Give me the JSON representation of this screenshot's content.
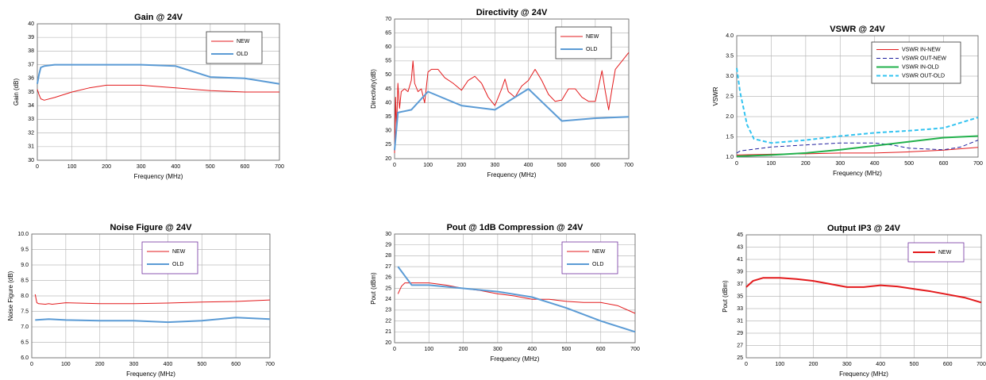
{
  "chart_data": [
    {
      "type": "line",
      "title": "Gain @ 24V",
      "xlabel": "Frequency (MHz)",
      "ylabel": "Gain (dB)",
      "xlim": [
        0,
        700
      ],
      "xticks": [
        0,
        100,
        200,
        300,
        400,
        500,
        600,
        700
      ],
      "ylim": [
        30,
        40
      ],
      "yticks": [
        30,
        31,
        32,
        33,
        34,
        35,
        36,
        37,
        38,
        39,
        40
      ],
      "grid": true,
      "legend": "upper right",
      "series": [
        {
          "name": "NEW",
          "color": "#e31a1c",
          "style": "solid",
          "width": 1,
          "x": [
            0,
            5,
            10,
            20,
            50,
            100,
            150,
            200,
            250,
            300,
            350,
            400,
            500,
            600,
            700
          ],
          "values": [
            35.2,
            34.8,
            34.5,
            34.4,
            34.6,
            35.0,
            35.3,
            35.5,
            35.5,
            35.5,
            35.4,
            35.3,
            35.1,
            35.0,
            35.0
          ]
        },
        {
          "name": "OLD",
          "color": "#5b9bd5",
          "style": "solid",
          "width": 2,
          "x": [
            0,
            5,
            10,
            20,
            50,
            100,
            200,
            300,
            400,
            500,
            600,
            700
          ],
          "values": [
            35.6,
            36.3,
            36.8,
            36.9,
            37.0,
            37.0,
            37.0,
            37.0,
            36.9,
            36.1,
            36.0,
            35.6
          ]
        }
      ]
    },
    {
      "type": "line",
      "title": "Directivity @ 24V",
      "xlabel": "Frequency (MHz)",
      "ylabel": "Directivity(dB)",
      "xlim": [
        0,
        700
      ],
      "xticks": [
        0,
        100,
        200,
        300,
        400,
        500,
        600,
        700
      ],
      "ylim": [
        20,
        70
      ],
      "yticks": [
        20,
        25,
        30,
        35,
        40,
        45,
        50,
        55,
        60,
        65,
        70
      ],
      "grid": true,
      "legend": "upper right",
      "series": [
        {
          "name": "NEW",
          "color": "#e31a1c",
          "style": "solid",
          "width": 1,
          "x": [
            0,
            3,
            6,
            10,
            15,
            20,
            30,
            40,
            50,
            55,
            60,
            70,
            80,
            90,
            100,
            110,
            130,
            150,
            175,
            200,
            220,
            240,
            260,
            280,
            300,
            320,
            330,
            340,
            360,
            380,
            400,
            420,
            440,
            460,
            480,
            500,
            520,
            540,
            560,
            580,
            600,
            620,
            630,
            640,
            650,
            660,
            680,
            700
          ],
          "values": [
            22,
            42,
            30,
            47,
            38,
            44,
            45,
            44,
            48,
            55,
            47,
            44,
            45,
            40,
            51,
            52,
            52,
            49,
            47,
            44.5,
            48,
            49.5,
            47,
            42,
            39,
            45,
            48.5,
            44,
            42,
            46,
            48,
            52,
            48,
            43,
            40.5,
            41,
            45,
            45,
            42,
            40.5,
            40.5,
            51.5,
            44,
            37.5,
            45,
            52,
            55,
            58
          ]
        },
        {
          "name": "OLD",
          "color": "#5b9bd5",
          "style": "solid",
          "width": 2,
          "x": [
            0,
            10,
            50,
            100,
            200,
            300,
            400,
            500,
            600,
            700
          ],
          "values": [
            23,
            36.5,
            37.5,
            44,
            39,
            37.5,
            45,
            33.5,
            34.5,
            35
          ]
        }
      ]
    },
    {
      "type": "line",
      "title": "VSWR @ 24V",
      "xlabel": "Frequency (MHz)",
      "ylabel": "VSWR",
      "xlim": [
        0,
        700
      ],
      "xticks": [
        0,
        100,
        200,
        300,
        400,
        500,
        600,
        700
      ],
      "ylim": [
        1,
        4
      ],
      "yticks": [
        {
          "value": 1,
          "label": "1.0"
        },
        1.5,
        {
          "value": 2,
          "label": "2.0"
        },
        2.5,
        {
          "value": 3,
          "label": "3.0"
        },
        3.5,
        {
          "value": 4,
          "label": "4.0"
        }
      ],
      "grid": true,
      "legend": "upper right",
      "series": [
        {
          "name": "VSWR IN-NEW",
          "color": "#e31a1c",
          "style": "solid",
          "width": 1,
          "x": [
            0,
            100,
            200,
            300,
            400,
            500,
            600,
            700
          ],
          "values": [
            1.05,
            1.07,
            1.08,
            1.1,
            1.1,
            1.13,
            1.17,
            1.24
          ]
        },
        {
          "name": "VSWR OUT-NEW",
          "color": "#1f1f9e",
          "style": "dashed",
          "width": 1,
          "x": [
            0,
            10,
            100,
            200,
            300,
            400,
            450,
            500,
            600,
            650,
            700
          ],
          "values": [
            1.1,
            1.15,
            1.25,
            1.3,
            1.35,
            1.35,
            1.3,
            1.22,
            1.18,
            1.25,
            1.42
          ]
        },
        {
          "name": "VSWR IN-OLD",
          "color": "#22b14c",
          "style": "solid",
          "width": 2,
          "x": [
            0,
            100,
            200,
            300,
            400,
            500,
            600,
            700
          ],
          "values": [
            1.02,
            1.05,
            1.1,
            1.18,
            1.28,
            1.38,
            1.48,
            1.52
          ]
        },
        {
          "name": "VSWR OUT-OLD",
          "color": "#33c3f0",
          "style": "dashed",
          "width": 2,
          "x": [
            0,
            10,
            30,
            50,
            100,
            200,
            300,
            400,
            500,
            600,
            700
          ],
          "values": [
            3.2,
            2.6,
            1.8,
            1.45,
            1.35,
            1.42,
            1.52,
            1.6,
            1.65,
            1.72,
            1.98
          ]
        }
      ]
    },
    {
      "type": "line",
      "title": "Noise Figure @ 24V",
      "xlabel": "Frequency (MHz)",
      "ylabel": "Noise Figure (dB)",
      "xlim": [
        0,
        700
      ],
      "xticks": [
        0,
        100,
        200,
        300,
        400,
        500,
        600,
        700
      ],
      "ylim": [
        6,
        10
      ],
      "yticks": [
        {
          "value": 6,
          "label": "6.0"
        },
        6.5,
        {
          "value": 7,
          "label": "7.0"
        },
        7.5,
        {
          "value": 8,
          "label": "8.0"
        },
        8.5,
        {
          "value": 9,
          "label": "9.0"
        },
        9.5,
        {
          "value": 10,
          "label": "10.0"
        }
      ],
      "grid": true,
      "legend": "upper center",
      "series": [
        {
          "name": "NEW",
          "color": "#e31a1c",
          "style": "solid",
          "width": 1,
          "x": [
            10,
            15,
            20,
            40,
            50,
            60,
            100,
            200,
            300,
            400,
            500,
            600,
            700
          ],
          "values": [
            8.05,
            7.78,
            7.75,
            7.73,
            7.75,
            7.73,
            7.78,
            7.75,
            7.75,
            7.77,
            7.8,
            7.82,
            7.87
          ]
        },
        {
          "name": "OLD",
          "color": "#5b9bd5",
          "style": "solid",
          "width": 2,
          "x": [
            10,
            50,
            100,
            200,
            300,
            400,
            500,
            600,
            700
          ],
          "values": [
            7.22,
            7.25,
            7.22,
            7.2,
            7.2,
            7.15,
            7.2,
            7.3,
            7.25
          ]
        }
      ]
    },
    {
      "type": "line",
      "title": "Pout @ 1dB Compression @ 24V",
      "xlabel": "Frequency (MHz)",
      "ylabel": "Pout (dBm)",
      "xlim": [
        0,
        700
      ],
      "xticks": [
        0,
        100,
        200,
        300,
        400,
        500,
        600,
        700
      ],
      "ylim": [
        20,
        30
      ],
      "yticks": [
        20,
        21,
        22,
        23,
        24,
        25,
        26,
        27,
        28,
        29,
        30
      ],
      "grid": true,
      "legend": "upper right",
      "series": [
        {
          "name": "NEW",
          "color": "#e31a1c",
          "style": "solid",
          "width": 1,
          "x": [
            10,
            20,
            30,
            50,
            100,
            150,
            200,
            250,
            300,
            350,
            400,
            450,
            500,
            550,
            600,
            650,
            700
          ],
          "values": [
            24.5,
            25.2,
            25.5,
            25.5,
            25.5,
            25.3,
            25.0,
            24.8,
            24.5,
            24.3,
            24.0,
            24.0,
            23.8,
            23.7,
            23.7,
            23.4,
            22.7
          ]
        },
        {
          "name": "OLD",
          "color": "#5b9bd5",
          "style": "solid",
          "width": 2,
          "x": [
            10,
            50,
            100,
            200,
            300,
            400,
            500,
            600,
            700
          ],
          "values": [
            27,
            25.3,
            25.3,
            25.0,
            24.7,
            24.2,
            23.2,
            22,
            21
          ]
        }
      ]
    },
    {
      "type": "line",
      "title": "Output IP3 @ 24V",
      "xlabel": "Frequency (MHz)",
      "ylabel": "Pout (dBm)",
      "xlim": [
        0,
        700
      ],
      "xticks": [
        0,
        100,
        200,
        300,
        400,
        500,
        600,
        700
      ],
      "ylim": [
        25,
        45
      ],
      "yticks": [
        25,
        27,
        29,
        31,
        33,
        35,
        37,
        39,
        41,
        43,
        45
      ],
      "grid": true,
      "legend": "upper right",
      "series": [
        {
          "name": "NEW",
          "color": "#e31a1c",
          "style": "solid",
          "width": 2,
          "x": [
            0,
            20,
            50,
            100,
            150,
            200,
            250,
            300,
            350,
            400,
            450,
            500,
            550,
            600,
            650,
            700
          ],
          "values": [
            36.5,
            37.5,
            38,
            38,
            37.8,
            37.5,
            37,
            36.5,
            36.5,
            36.8,
            36.6,
            36.2,
            35.8,
            35.3,
            34.8,
            34
          ]
        }
      ]
    }
  ]
}
